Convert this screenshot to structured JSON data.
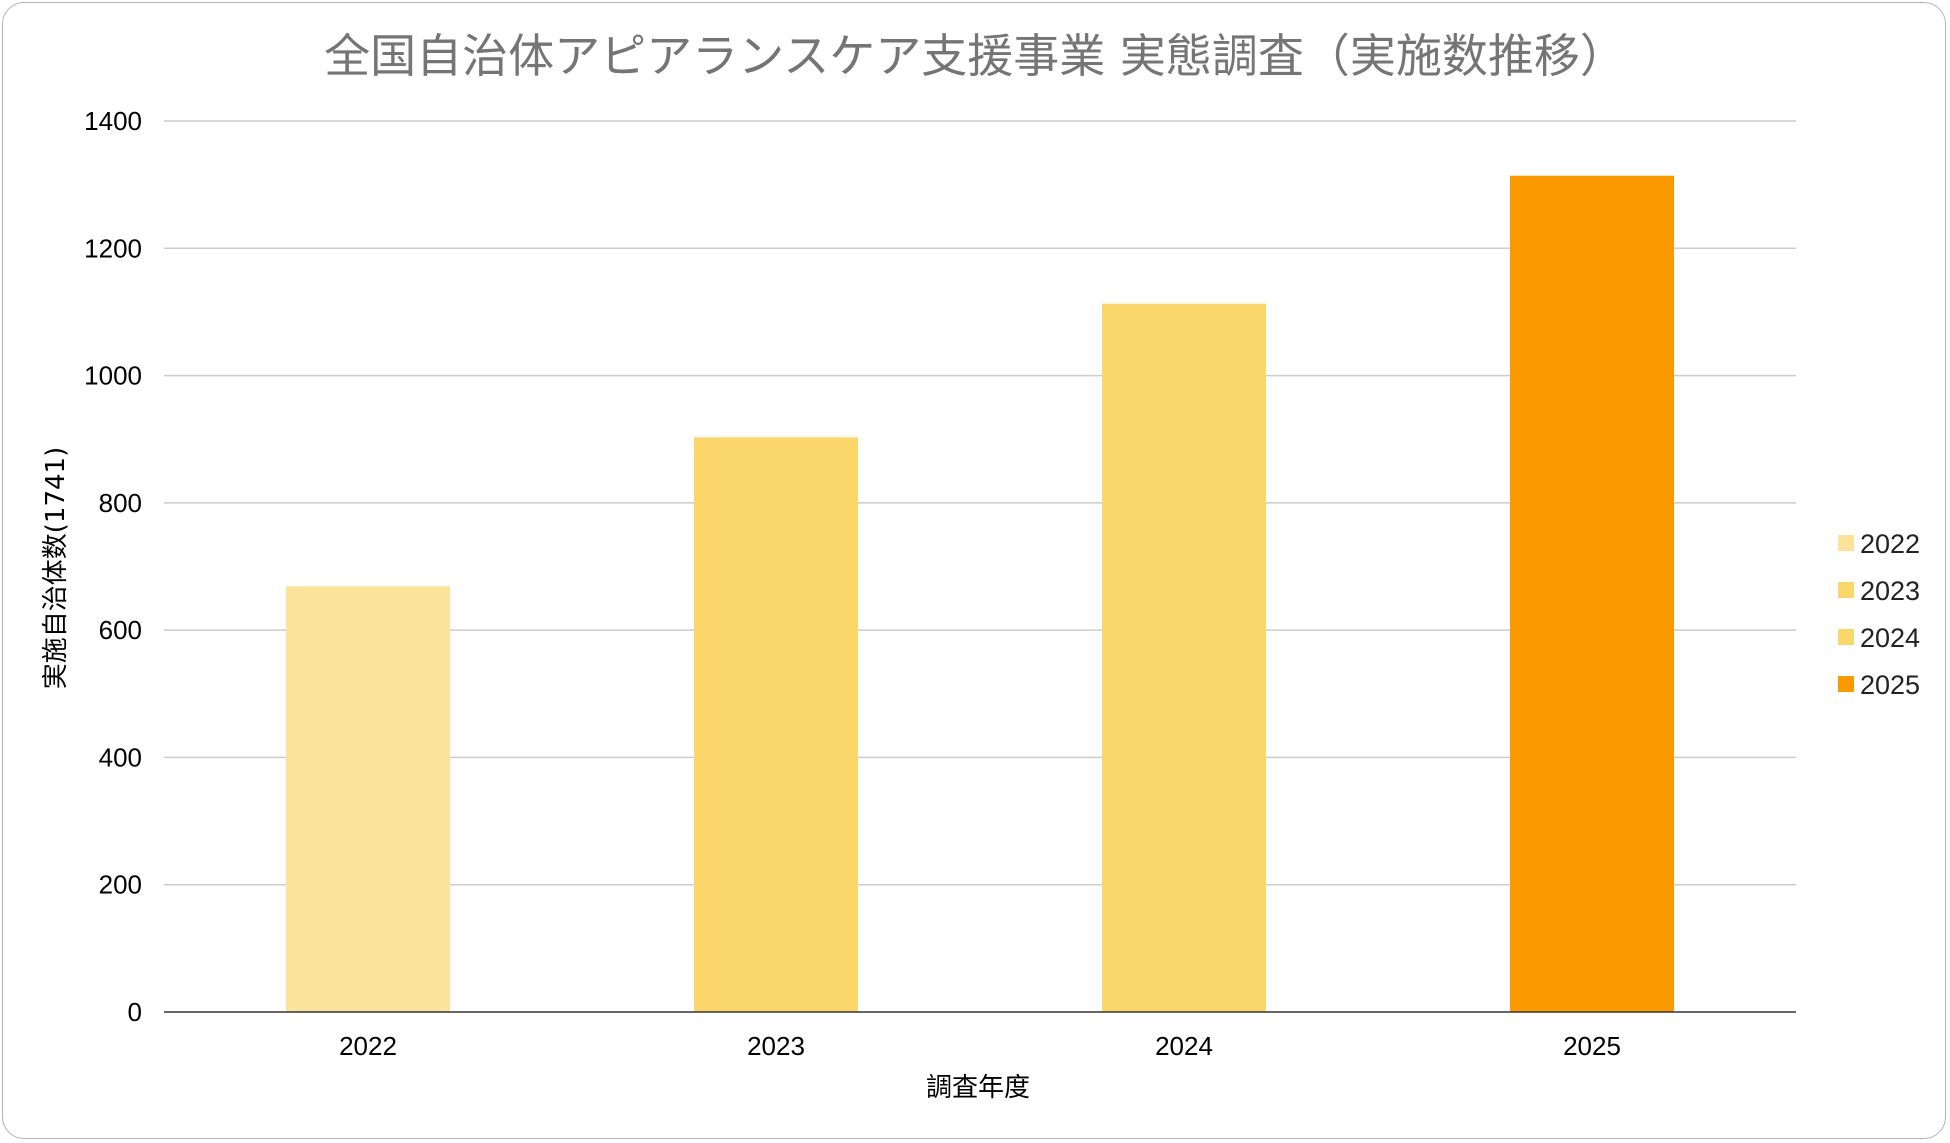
{
  "chart_data": {
    "type": "bar",
    "title": "全国自治体アピアランスケア支援事業 実態調査（実施数推移）",
    "xlabel": "調査年度",
    "ylabel": "実施自治体数(1741)",
    "categories": [
      "2022",
      "2023",
      "2024",
      "2025"
    ],
    "values": [
      669,
      903,
      1113,
      1314
    ],
    "colors": [
      "#fbe39a",
      "#fbd66b",
      "#fbd66b",
      "#fb9a00"
    ],
    "ylim": [
      0,
      1400
    ],
    "yticks": [
      0,
      200,
      400,
      600,
      800,
      1000,
      1200,
      1400
    ],
    "grid": true,
    "legend": {
      "placement": "right",
      "entries": [
        {
          "label": "2022",
          "color": "#fbe39a"
        },
        {
          "label": "2023",
          "color": "#fbd66b"
        },
        {
          "label": "2024",
          "color": "#fbd66b"
        },
        {
          "label": "2025",
          "color": "#fb9a00"
        }
      ]
    }
  }
}
